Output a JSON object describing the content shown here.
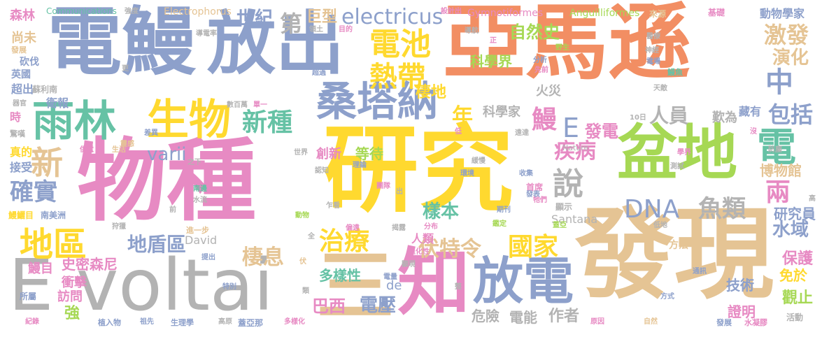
{
  "palette": {
    "orange": "#F28E63",
    "blue": "#8DA0CB",
    "pink": "#E78AC3",
    "green": "#A6D854",
    "yellow": "#FFD92F",
    "tan": "#E5C494",
    "gray": "#B3B3B3",
    "teal": "#66C2A5"
  },
  "words": {
    "yanmaxun": "亞馬遜",
    "dianman": "電鰻",
    "fangchu": "放出",
    "wuzhong": "物種",
    "yanjiu": "研究",
    "faxian": "發現",
    "evoltai": "E voltai",
    "pendi": "盆地",
    "sangtana": "桑塔納",
    "shengwu": "生物",
    "yulin": "雨林",
    "zhi": "知",
    "san": "三",
    "fangdian": "放電",
    "dianchi": "電池",
    "redai": "熱帶",
    "electricus": "electricus",
    "dna": "DNA",
    "diqu": "地區",
    "quebao": "確實",
    "xinzhong": "新種",
    "shiji": "世紀",
    "di": "第",
    "juxing": "巨型",
    "fute": "伏特令",
    "guojia": "國家",
    "zhiliao": "治療",
    "jibing": "疾病",
    "shuo": "說",
    "yulei": "魚類",
    "liang": "兩",
    "dian": "電",
    "zhong": "中",
    "baokuo": "包括",
    "jifa": "激發",
    "yanhua": "演化",
    "xin": "新",
    "varii": "varii",
    "man": "鰻",
    "e_small": "E",
    "nian": "年",
    "fadian": "發電",
    "renyuan": "人員",
    "dizhenqu": "地盾區",
    "qixi": "棲息",
    "qidi": "棲地",
    "biaoben": "樣本",
    "baxi": "巴西",
    "dianya": "電壓",
    "duoyangxing": "多樣性",
    "ziranshi": "自然史",
    "kexuejie": "科學界",
    "kexuejia": "科學家",
    "shuiyu": "水域",
    "yanjiuyuan": "研究員",
    "bowuguan": "博物館",
    "baohu": "保護",
    "guanzhi": "觀止",
    "mianyu": "免於",
    "jishu": "技術",
    "zhengming": "證明",
    "weixian": "危險",
    "dianneng": "電能",
    "zuozhe": "作者",
    "shimisen": "史密森尼",
    "chongji": "衝擊",
    "fangwen": "訪問",
    "qiang": "強",
    "dianmanmu": "鰻目",
    "chuangxin": "創新",
    "dengdai": "等待",
    "renlei": "人類",
    "zhiyou": "治癒",
    "guojia2": "研究",
    "gymnotiformes": "Gymnotiformes",
    "anguilliformes": "Anguilliformes",
    "electrophorus": "Electrophorus",
    "communications": "Communications",
    "nature": "Nature",
    "santana": "Santana",
    "david": "David",
    "de": "de",
    "senlin": "森林",
    "shangwei": "尚未",
    "kanfa": "砍伐",
    "yingguo": "英國",
    "chaochu": "超出",
    "sulinan": "蘇利南",
    "weibao": "衛報",
    "shi": "時",
    "zhende": "真的",
    "jieshou": "接受",
    "dongwuxuejia": "動物學家",
    "jichu": "基礎",
    "laiyuan": "來源",
    "huozai": "火災",
    "tanwei": "歎為",
    "cangyou": "藏有",
    "fangfa": "方法",
    "qiangdu": "強度",
    "shejichu": "設計出",
    "lingtu": "領土",
    "mudi": "目的",
    "daodianlv": "導電率",
    "gengjinyibu": "進一步",
    "zhuyao": "主要",
    "shuiningjiao": "水凝膠",
    "huodong": "活動",
    "fazhan": "發展",
    "ziran": "自然",
    "yuanyin": "原因",
    "gaoyuan": "高原",
    "shenglixue": "生理學",
    "zuxian": "祖先",
    "zhiruwu": "植入物",
    "jilu": "紀錄",
    "suoshu": "所屬",
    "nanmeizhou": "南美洲",
    "manmu": "鰻鱺目",
    "jingfu": "驚嘆",
    "qiguan": "器官",
    "shuzhong": "數百萬",
    "danyi": "單一",
    "chayi": "差異",
    "lingsheng": "靈感",
    "gongdian": "供電",
    "shenghuo": "生活",
    "nanlian": "南邊",
    "shuiliu": "水流",
    "shoulie": "狩獵",
    "qian": "前",
    "zhixia": "之下",
    "tebie": "特別",
    "tichu": "提出",
    "duoyanghua": "多樣化",
    "gaiyana": "蓋亞那",
    "shijie": "世界",
    "renzhi": "認知",
    "lilun": "理論",
    "tuanduei": "團隊",
    "zuokan": "乍看",
    "chu": "出",
    "jietou": "揭露",
    "fenbu": "分布",
    "jianding": "鑑定",
    "qikan": "期刊",
    "shouxing": "首席",
    "xianshi": "顯示",
    "dizhi": "低地",
    "gaoya": "蓋亞",
    "shiyan": "測試",
    "fangzhi": "防塵",
    "xuejie": "學界",
    "fangshi": "方式",
    "tongxun": "通訊",
    "mei": "沒",
    "gao": "高",
    "tiandi": "天敵",
    "dianchang": "電場",
    "shenjing": "神經",
    "yisheng": "醫療",
    "yesheng": "野生",
    "xianqian": "先前",
    "fenxi": "分析",
    "daohang": "導航",
    "zheng": "正",
    "chaoyue": "超過",
    "geng": "更",
    "shouji": "收集",
    "huanjing": "環境",
    "huanman": "緩慢",
    "yuanda": "遠達",
    "shiri": "10日",
    "di2": "低",
    "tamen": "牠們",
    "fabiao": "發表",
    "quan": "全",
    "pianyuan": "偏遠",
    "tuihuaxing": "退化性",
    "dianliang": "電量",
    "xianshou": "顯現",
    "fu": "伏",
    "lei": "類",
    "zheng2": "整",
    "dongwu": "動物",
    "manyu": "鰻魚"
  }
}
